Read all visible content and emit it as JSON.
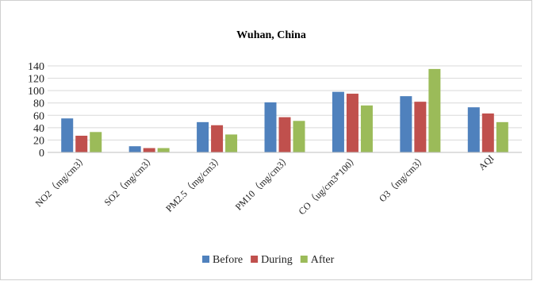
{
  "chart_data": {
    "type": "bar",
    "title": "Wuhan, China",
    "xlabel": "",
    "ylabel": "",
    "ylim": [
      0,
      140
    ],
    "yticks": [
      0,
      20,
      40,
      60,
      80,
      100,
      120,
      140
    ],
    "grid": true,
    "legend_position": "bottom",
    "categories": [
      "NO2（mg/cm3）",
      "SO2（mg/cm3）",
      "PM2.5（mg/cm3）",
      "PM10（mg/cm3）",
      "CO（ug/cm3*100）",
      "O3（mg/cm3）",
      "AQI"
    ],
    "series": [
      {
        "name": "Before",
        "color": "#4f81bd",
        "values": [
          55,
          10,
          49,
          81,
          98,
          91,
          73
        ]
      },
      {
        "name": "During",
        "color": "#c0504d",
        "values": [
          27,
          7,
          44,
          57,
          95,
          82,
          63
        ]
      },
      {
        "name": "After",
        "color": "#9bbb59",
        "values": [
          33,
          7,
          29,
          51,
          76,
          135,
          49
        ]
      }
    ]
  }
}
